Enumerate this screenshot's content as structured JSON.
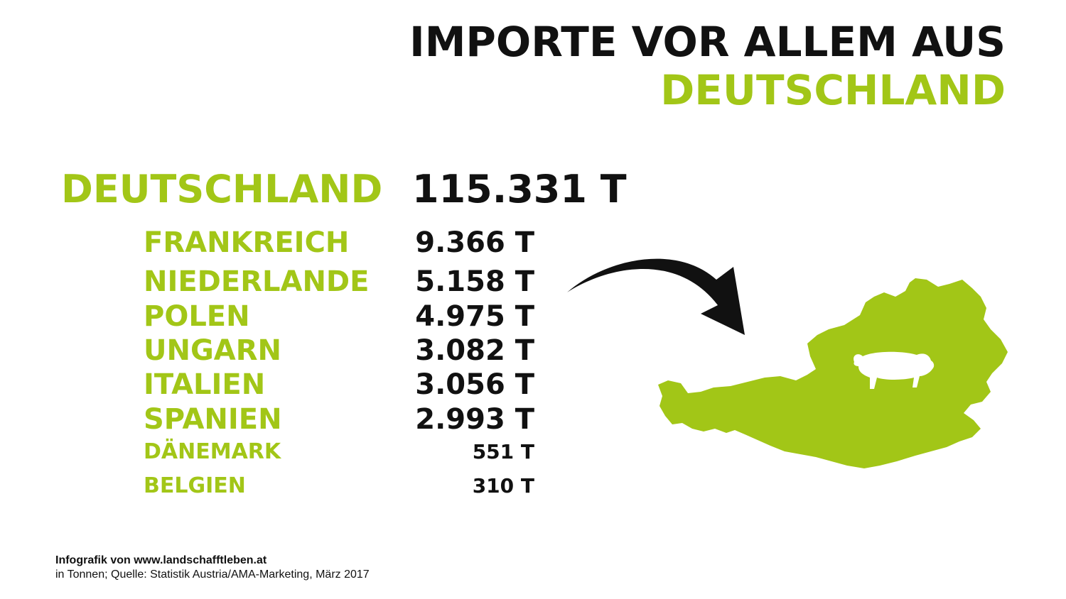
{
  "title": {
    "line1": "IMPORTE VOR ALLEM AUS",
    "line2": "DEUTSCHLAND"
  },
  "top_import": {
    "country": "DEUTSCHLAND",
    "amount": "115.331 T"
  },
  "imports": [
    {
      "country": "FRANKREICH",
      "amount": "9.366 T"
    },
    {
      "country": "NIEDERLANDE",
      "amount": "5.158 T"
    },
    {
      "country": "POLEN",
      "amount": "4.975 T"
    },
    {
      "country": "UNGARN",
      "amount": "3.082 T"
    },
    {
      "country": "ITALIEN",
      "amount": "3.056 T"
    },
    {
      "country": "SPANIEN",
      "amount": "2.993 T"
    },
    {
      "country": "DÄNEMARK",
      "amount": "551 T"
    },
    {
      "country": "BELGIEN",
      "amount": "310 T"
    }
  ],
  "footer": {
    "credit": "Infografik von www.landschafftleben.at",
    "source": "in Tonnen; Quelle: Statistik Austria/AMA-Marketing, März 2017"
  },
  "colors": {
    "accent_green": "#a2c617",
    "text_dark": "#111111"
  },
  "icons": [
    "arrow-icon",
    "austria-map-icon",
    "pig-icon"
  ]
}
